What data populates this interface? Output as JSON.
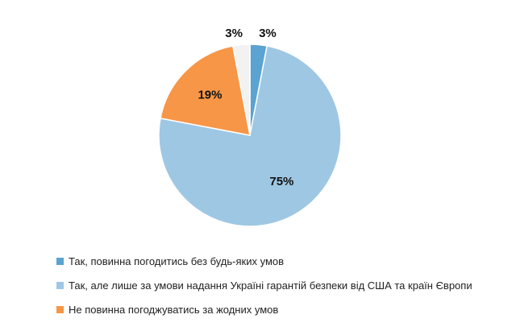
{
  "chart_data": {
    "type": "pie",
    "categories": [
      "Так, повинна погодитись без будь-яких умов",
      "Так, але лише за умови надання Україні гарантій безпеки від США та країн Європи",
      "Не повинна погоджуватись за жодних умов",
      ""
    ],
    "values": [
      3,
      75,
      19,
      3
    ],
    "labels": [
      "3%",
      "75%",
      "19%",
      "3%"
    ],
    "colors": [
      "#5ba3d0",
      "#9ec7e3",
      "#f79646",
      "#f2f2f2"
    ],
    "legend_position": "bottom-left"
  },
  "legend": [
    {
      "label": "Так, повинна погодитись без будь-яких умов",
      "color": "#5ba3d0"
    },
    {
      "label": "Так, але лише за умови надання Україні гарантій безпеки від США та країн Європи",
      "color": "#9ec7e3"
    },
    {
      "label": "Не повинна погоджуватись за жодних умов",
      "color": "#f79646"
    }
  ]
}
